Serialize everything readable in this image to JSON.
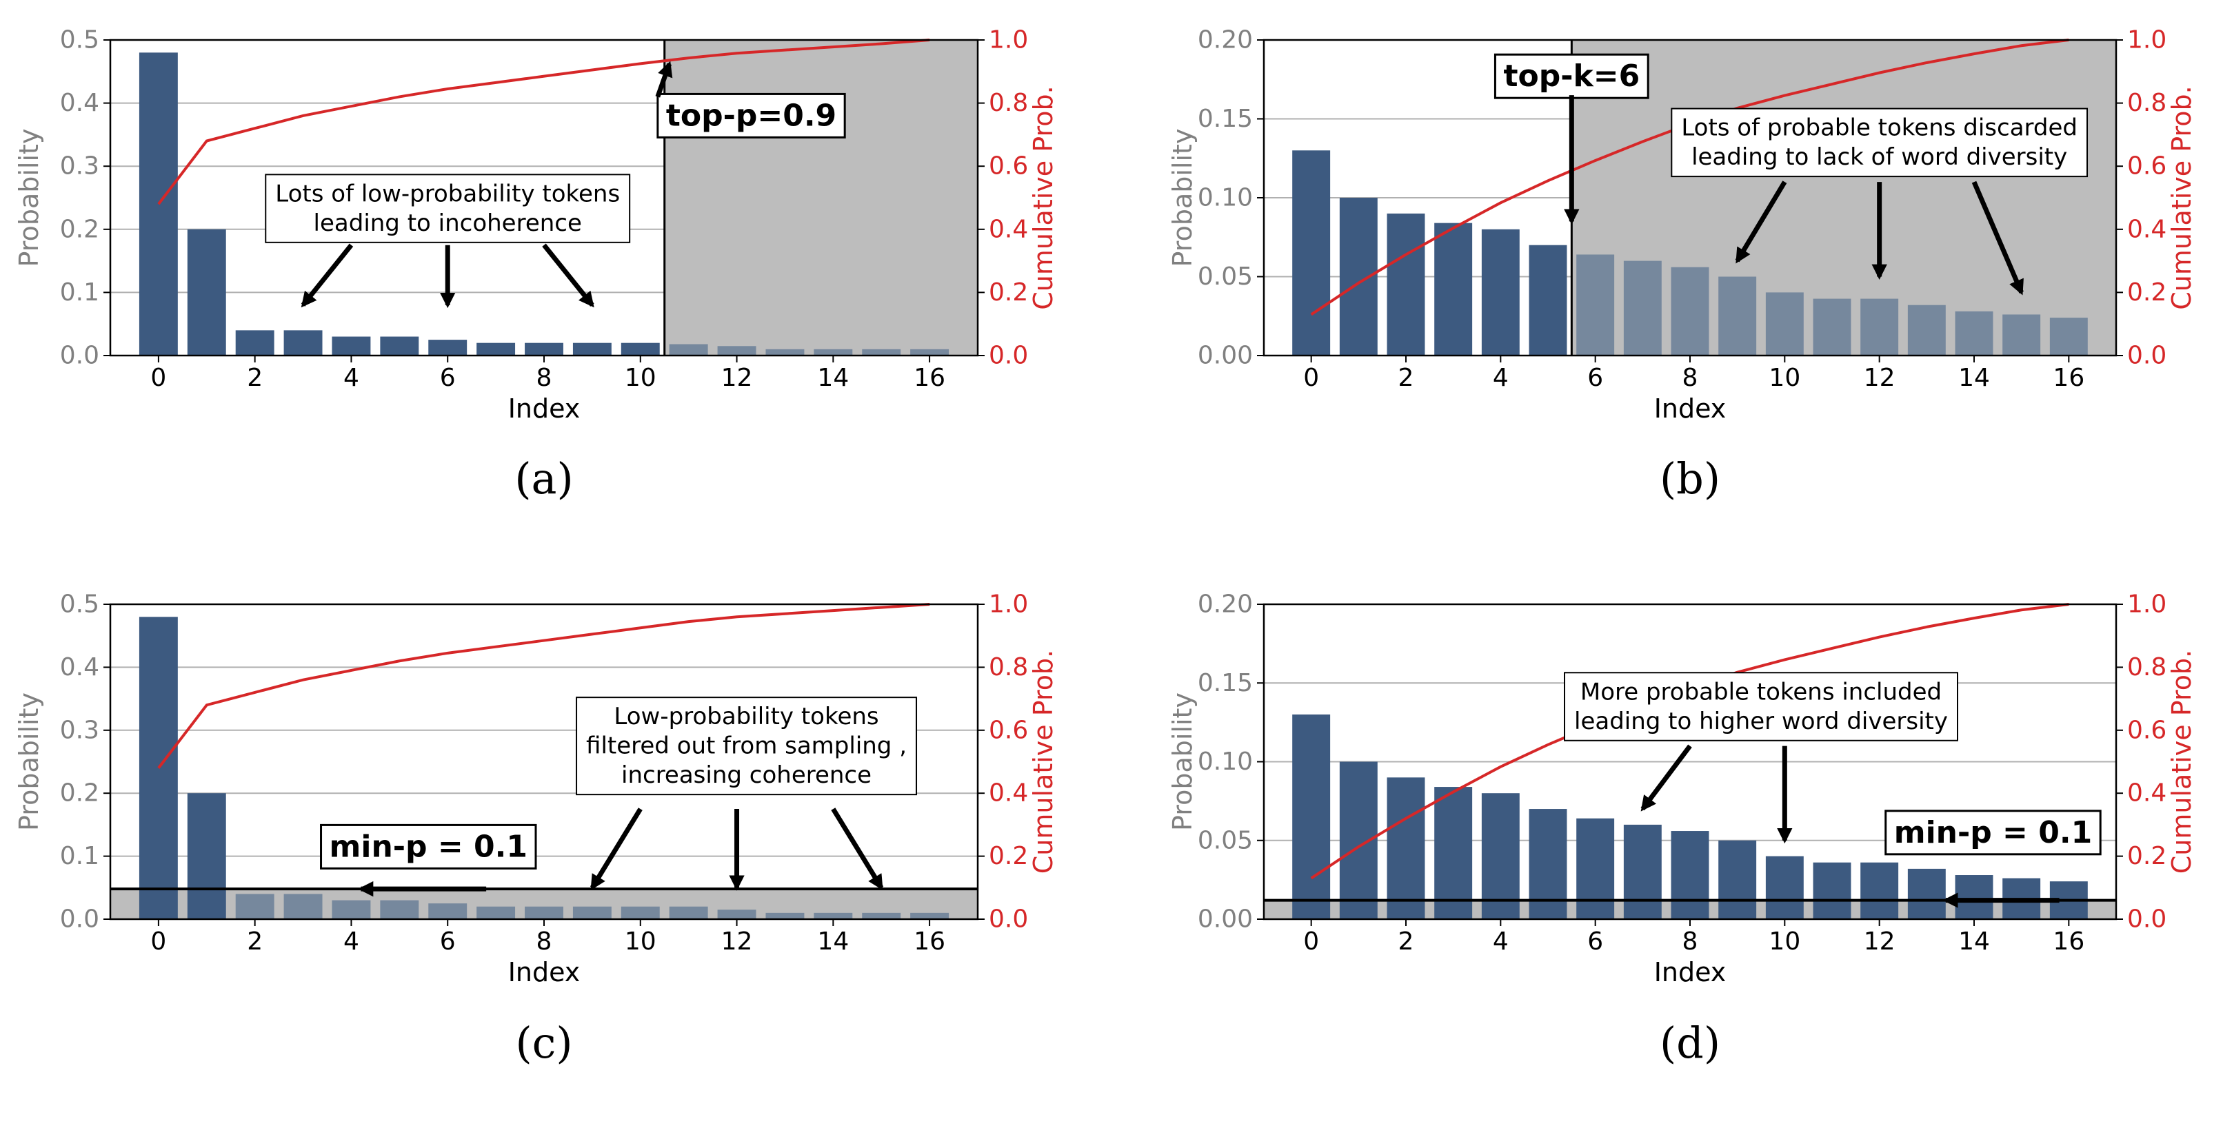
{
  "colors": {
    "bar_kept": "#3d5a80",
    "bar_discarded": "#76889d",
    "cumulative_line": "#d62728",
    "shade": "#bdbdbd",
    "axis_text_left": "#808080",
    "grid": "#b0b0b0"
  },
  "chart_data": [
    {
      "type": "bar",
      "panel_label": "(a)",
      "xlabel": "Index",
      "ylabel": "Probability",
      "ylabel_right": "Cumulative Prob.",
      "ylim": [
        0,
        0.5
      ],
      "y_ticks": [
        "0.0",
        "0.1",
        "0.2",
        "0.3",
        "0.4",
        "0.5"
      ],
      "ylim_right": [
        0,
        1.0
      ],
      "y_ticks_right": [
        "0.0",
        "0.2",
        "0.4",
        "0.6",
        "0.8",
        "1.0"
      ],
      "x_ticks": [
        "0",
        "2",
        "4",
        "6",
        "8",
        "10",
        "12",
        "14",
        "16"
      ],
      "x": [
        0,
        1,
        2,
        3,
        4,
        5,
        6,
        7,
        8,
        9,
        10,
        11,
        12,
        13,
        14,
        15,
        16
      ],
      "values": [
        0.48,
        0.2,
        0.04,
        0.04,
        0.03,
        0.03,
        0.025,
        0.02,
        0.02,
        0.02,
        0.02,
        0.018,
        0.015,
        0.01,
        0.01,
        0.01,
        0.01
      ],
      "cumulative": [
        0.48,
        0.68,
        0.72,
        0.76,
        0.79,
        0.82,
        0.845,
        0.865,
        0.885,
        0.905,
        0.925,
        0.943,
        0.958,
        0.968,
        0.978,
        0.988,
        1.0
      ],
      "kept_count": 11,
      "cutoff": {
        "kind": "vertical",
        "at_index": 10.5
      },
      "shade_region": "right",
      "boxed_labels": [
        {
          "text": "top-p=0.9",
          "bold": true,
          "anchor": [
            12.3,
            0.38
          ],
          "font": 44,
          "arrow": [
            10.6,
            0.462
          ]
        }
      ],
      "annotations": [
        {
          "lines": [
            "Lots of low-probability tokens",
            "leading to incoherence"
          ],
          "anchor": [
            6.0,
            0.233
          ],
          "font": 34,
          "arrows": [
            [
              [
                4.0,
                0.175
              ],
              [
                3.0,
                0.08
              ]
            ],
            [
              [
                6.0,
                0.175
              ],
              [
                6.0,
                0.08
              ]
            ],
            [
              [
                8.0,
                0.175
              ],
              [
                9.0,
                0.08
              ]
            ]
          ]
        }
      ]
    },
    {
      "type": "bar",
      "panel_label": "(b)",
      "xlabel": "Index",
      "ylabel": "Probability",
      "ylabel_right": "Cumulative Prob.",
      "ylim": [
        0,
        0.2
      ],
      "y_ticks": [
        "0.00",
        "0.05",
        "0.10",
        "0.15",
        "0.20"
      ],
      "ylim_right": [
        0,
        1.0
      ],
      "y_ticks_right": [
        "0.0",
        "0.2",
        "0.4",
        "0.6",
        "0.8",
        "1.0"
      ],
      "x_ticks": [
        "0",
        "2",
        "4",
        "6",
        "8",
        "10",
        "12",
        "14",
        "16"
      ],
      "x": [
        0,
        1,
        2,
        3,
        4,
        5,
        6,
        7,
        8,
        9,
        10,
        11,
        12,
        13,
        14,
        15,
        16
      ],
      "values": [
        0.13,
        0.1,
        0.09,
        0.084,
        0.08,
        0.07,
        0.064,
        0.06,
        0.056,
        0.05,
        0.04,
        0.036,
        0.036,
        0.032,
        0.028,
        0.026,
        0.024
      ],
      "cumulative": [
        0.13,
        0.23,
        0.32,
        0.404,
        0.484,
        0.554,
        0.618,
        0.678,
        0.734,
        0.784,
        0.824,
        0.86,
        0.896,
        0.928,
        0.956,
        0.982,
        1.0
      ],
      "kept_count": 6,
      "cutoff": {
        "kind": "vertical",
        "at_index": 5.5
      },
      "shade_region": "right",
      "boxed_labels": [
        {
          "text": "top-k=6",
          "bold": true,
          "anchor": [
            5.5,
            0.177
          ],
          "font": 44,
          "arrow_from": [
            5.5,
            0.165
          ],
          "arrow": [
            5.5,
            0.085
          ]
        }
      ],
      "annotations": [
        {
          "lines": [
            "Lots of probable tokens discarded",
            "leading to lack of word diversity"
          ],
          "anchor": [
            12.0,
            0.135
          ],
          "font": 34,
          "arrows": [
            [
              [
                10.0,
                0.11
              ],
              [
                9.0,
                0.06
              ]
            ],
            [
              [
                12.0,
                0.11
              ],
              [
                12.0,
                0.05
              ]
            ],
            [
              [
                14.0,
                0.11
              ],
              [
                15.0,
                0.04
              ]
            ]
          ]
        }
      ]
    },
    {
      "type": "bar",
      "panel_label": "(c)",
      "xlabel": "Index",
      "ylabel": "Probability",
      "ylabel_right": "Cumulative Prob.",
      "ylim": [
        0,
        0.5
      ],
      "y_ticks": [
        "0.0",
        "0.1",
        "0.2",
        "0.3",
        "0.4",
        "0.5"
      ],
      "ylim_right": [
        0,
        1.0
      ],
      "y_ticks_right": [
        "0.0",
        "0.2",
        "0.4",
        "0.6",
        "0.8",
        "1.0"
      ],
      "x_ticks": [
        "0",
        "2",
        "4",
        "6",
        "8",
        "10",
        "12",
        "14",
        "16"
      ],
      "x": [
        0,
        1,
        2,
        3,
        4,
        5,
        6,
        7,
        8,
        9,
        10,
        11,
        12,
        13,
        14,
        15,
        16
      ],
      "values": [
        0.48,
        0.2,
        0.04,
        0.04,
        0.03,
        0.03,
        0.025,
        0.02,
        0.02,
        0.02,
        0.02,
        0.02,
        0.015,
        0.01,
        0.01,
        0.01,
        0.01
      ],
      "cumulative": [
        0.48,
        0.68,
        0.72,
        0.76,
        0.79,
        0.82,
        0.845,
        0.865,
        0.885,
        0.905,
        0.925,
        0.945,
        0.96,
        0.97,
        0.98,
        0.99,
        1.0
      ],
      "kept_count": 2,
      "cutoff": {
        "kind": "horizontal",
        "at_value": 0.048
      },
      "shade_region": "below",
      "boxed_labels": [
        {
          "text": "min-p = 0.1",
          "bold": true,
          "anchor": [
            5.6,
            0.115
          ],
          "font": 44,
          "arrow_from": [
            6.8,
            0.048
          ],
          "arrow": [
            4.2,
            0.048
          ]
        }
      ],
      "annotations": [
        {
          "lines": [
            "Low-probability tokens",
            "filtered out from sampling ,",
            "increasing coherence"
          ],
          "anchor": [
            12.2,
            0.275
          ],
          "font": 34,
          "arrows": [
            [
              [
                10.0,
                0.175
              ],
              [
                9.0,
                0.05
              ]
            ],
            [
              [
                12.0,
                0.175
              ],
              [
                12.0,
                0.05
              ]
            ],
            [
              [
                14.0,
                0.175
              ],
              [
                15.0,
                0.05
              ]
            ]
          ]
        }
      ]
    },
    {
      "type": "bar",
      "panel_label": "(d)",
      "xlabel": "Index",
      "ylabel": "Probability",
      "ylabel_right": "Cumulative Prob.",
      "ylim": [
        0,
        0.2
      ],
      "y_ticks": [
        "0.00",
        "0.05",
        "0.10",
        "0.15",
        "0.20"
      ],
      "ylim_right": [
        0,
        1.0
      ],
      "y_ticks_right": [
        "0.0",
        "0.2",
        "0.4",
        "0.6",
        "0.8",
        "1.0"
      ],
      "x_ticks": [
        "0",
        "2",
        "4",
        "6",
        "8",
        "10",
        "12",
        "14",
        "16"
      ],
      "x": [
        0,
        1,
        2,
        3,
        4,
        5,
        6,
        7,
        8,
        9,
        10,
        11,
        12,
        13,
        14,
        15,
        16
      ],
      "values": [
        0.13,
        0.1,
        0.09,
        0.084,
        0.08,
        0.07,
        0.064,
        0.06,
        0.056,
        0.05,
        0.04,
        0.036,
        0.036,
        0.032,
        0.028,
        0.026,
        0.024
      ],
      "cumulative": [
        0.13,
        0.23,
        0.32,
        0.404,
        0.484,
        0.554,
        0.618,
        0.678,
        0.734,
        0.784,
        0.824,
        0.86,
        0.896,
        0.928,
        0.956,
        0.982,
        1.0
      ],
      "kept_count": 17,
      "cutoff": {
        "kind": "horizontal",
        "at_value": 0.012
      },
      "shade_region": "below",
      "boxed_labels": [
        {
          "text": "min-p = 0.1",
          "bold": true,
          "anchor": [
            14.4,
            0.055
          ],
          "font": 44,
          "arrow_from": [
            15.8,
            0.012
          ],
          "arrow": [
            13.4,
            0.012
          ]
        }
      ],
      "annotations": [
        {
          "lines": [
            "More probable tokens included",
            "leading to higher word diversity"
          ],
          "anchor": [
            9.5,
            0.135
          ],
          "font": 34,
          "arrows": [
            [
              [
                8.0,
                0.11
              ],
              [
                7.0,
                0.07
              ]
            ],
            [
              [
                10.0,
                0.11
              ],
              [
                10.0,
                0.05
              ]
            ]
          ]
        }
      ]
    }
  ]
}
